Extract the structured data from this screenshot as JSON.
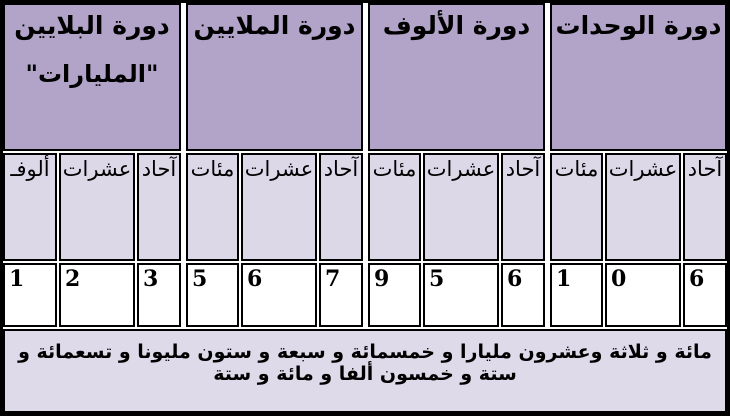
{
  "table": {
    "periods": [
      {
        "label": "دورة الوحدات",
        "sublabel": "",
        "columns": [
          {
            "place": "آحاد",
            "digit": "6"
          },
          {
            "place": "عشرات",
            "digit": "0"
          },
          {
            "place": "مئات",
            "digit": "1"
          }
        ]
      },
      {
        "label": "دورة الألوف",
        "sublabel": "",
        "columns": [
          {
            "place": "آحاد",
            "digit": "6"
          },
          {
            "place": "عشرات",
            "digit": "5"
          },
          {
            "place": "مئات",
            "digit": "9"
          }
        ]
      },
      {
        "label": "دورة الملايين",
        "sublabel": "",
        "columns": [
          {
            "place": "آحاد",
            "digit": "7"
          },
          {
            "place": "عشرات",
            "digit": "6"
          },
          {
            "place": "مئات",
            "digit": "5"
          }
        ]
      },
      {
        "label": "دورة البلايين",
        "sublabel": "\"المليارات\"",
        "columns": [
          {
            "place": "آحاد",
            "digit": "3"
          },
          {
            "place": "عشرات",
            "digit": "2"
          },
          {
            "place": "ألوفـ",
            "digit": "1"
          }
        ]
      }
    ],
    "number_in_words": "مائة و ثلاثة وعشرون مليارا و خمسمائة و سبعة و ستون مليونا و تسعمائة و ستة و خمسون ألفا و مائة و ستة",
    "colors": {
      "period_header_bg": "#b1a4c8",
      "place_header_bg": "#dcd8e8",
      "digit_cell_bg": "#ffffff",
      "words_bg": "#dedae9",
      "border": "#000000"
    }
  }
}
